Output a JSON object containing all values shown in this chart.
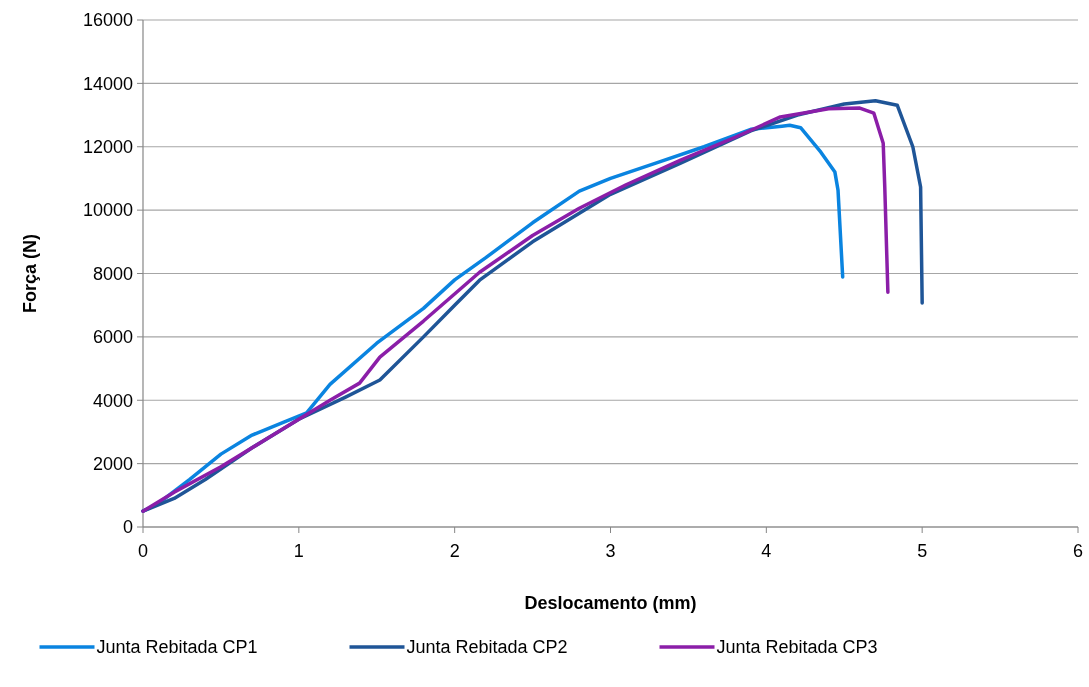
{
  "chart_data": {
    "type": "line",
    "xlabel": "Deslocamento (mm)",
    "ylabel": "Força (N)",
    "xlim": [
      0,
      6
    ],
    "xticks": [
      0,
      1,
      2,
      3,
      4,
      5,
      6
    ],
    "ylim": [
      0,
      16000
    ],
    "yticks": [
      0,
      2000,
      4000,
      6000,
      8000,
      10000,
      12000,
      14000,
      16000
    ],
    "grid": "y",
    "legend": "bottom",
    "marker": "none",
    "line_style": "solid",
    "series": [
      {
        "name": "Junta Rebitada CP1",
        "color": "#0a84e0",
        "x": [
          0,
          0.1,
          0.3,
          0.5,
          0.7,
          0.9,
          1.05,
          1.2,
          1.5,
          1.8,
          2.0,
          2.2,
          2.5,
          2.8,
          3.0,
          3.3,
          3.6,
          3.9,
          4.1,
          4.15,
          4.22,
          4.35,
          4.44,
          4.46,
          4.49
        ],
        "values": [
          500,
          750,
          1500,
          2300,
          2900,
          3300,
          3600,
          4500,
          5800,
          6900,
          7800,
          8500,
          9600,
          10600,
          11000,
          11500,
          12000,
          12550,
          12650,
          12680,
          12600,
          11830,
          11200,
          10630,
          7890
        ]
      },
      {
        "name": "Junta Rebitada CP2",
        "color": "#1f5597",
        "x": [
          0,
          0.2,
          0.4,
          0.7,
          1.0,
          1.3,
          1.52,
          1.8,
          2.0,
          2.16,
          2.5,
          2.8,
          3.0,
          3.45,
          3.9,
          4.2,
          4.5,
          4.7,
          4.84,
          4.94,
          4.99,
          5.0
        ],
        "values": [
          500,
          900,
          1500,
          2500,
          3400,
          4100,
          4640,
          6000,
          7000,
          7790,
          9000,
          9900,
          10500,
          11480,
          12500,
          13000,
          13350,
          13450,
          13310,
          12000,
          10730,
          7070
        ]
      },
      {
        "name": "Junta Rebitada CP3",
        "color": "#8b1ea8",
        "x": [
          0,
          0.2,
          0.5,
          0.8,
          1.0,
          1.2,
          1.39,
          1.52,
          1.8,
          2.16,
          2.5,
          2.8,
          3.1,
          3.45,
          3.8,
          4.09,
          4.4,
          4.6,
          4.69,
          4.75,
          4.76,
          4.78
        ],
        "values": [
          500,
          1100,
          1900,
          2800,
          3400,
          4000,
          4540,
          5360,
          6500,
          8040,
          9200,
          10060,
          10800,
          11580,
          12300,
          12940,
          13200,
          13220,
          13060,
          12110,
          10730,
          7410
        ]
      }
    ]
  }
}
